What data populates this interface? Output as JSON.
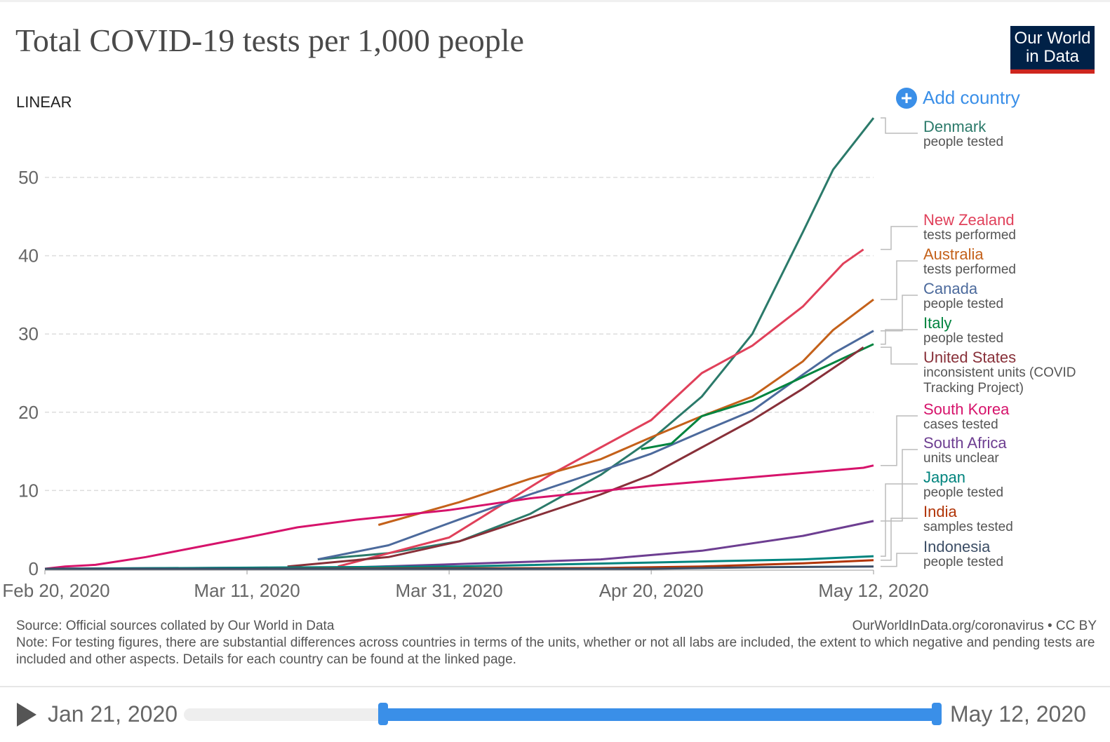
{
  "header": {
    "title": "Total COVID-19 tests per 1,000 people",
    "logo": "Our World in Data",
    "scale_toggle": "LINEAR",
    "add_country": "Add country"
  },
  "chart_data": {
    "type": "line",
    "title": "Total COVID-19 tests per 1,000 people",
    "xlim": [
      "2020-02-20",
      "2020-05-12"
    ],
    "ylim": [
      0,
      58
    ],
    "y_ticks": [
      0,
      10,
      20,
      30,
      40,
      50
    ],
    "x_ticks": [
      "Feb 20, 2020",
      "Mar 11, 2020",
      "Mar 31, 2020",
      "Apr 20, 2020",
      "May 12, 2020"
    ],
    "x_tick_dates": [
      "2020-02-20",
      "2020-03-11",
      "2020-03-31",
      "2020-04-20",
      "2020-05-12"
    ],
    "grid": true,
    "legend": "right",
    "series": [
      {
        "name": "Denmark",
        "unit": "people tested",
        "color": "#2b7a6a",
        "points": [
          [
            "2020-03-18",
            1.2
          ],
          [
            "2020-03-25",
            2
          ],
          [
            "2020-04-01",
            3.5
          ],
          [
            "2020-04-08",
            7
          ],
          [
            "2020-04-15",
            12
          ],
          [
            "2020-04-20",
            16.5
          ],
          [
            "2020-04-25",
            22
          ],
          [
            "2020-04-30",
            30
          ],
          [
            "2020-05-05",
            43
          ],
          [
            "2020-05-08",
            51
          ],
          [
            "2020-05-12",
            57.6
          ]
        ]
      },
      {
        "name": "New Zealand",
        "unit": "tests performed",
        "color": "#e0405a",
        "points": [
          [
            "2020-03-20",
            0.3
          ],
          [
            "2020-03-31",
            4
          ],
          [
            "2020-04-05",
            8
          ],
          [
            "2020-04-10",
            12
          ],
          [
            "2020-04-15",
            15.5
          ],
          [
            "2020-04-20",
            19
          ],
          [
            "2020-04-25",
            25
          ],
          [
            "2020-04-30",
            28.5
          ],
          [
            "2020-05-05",
            33.5
          ],
          [
            "2020-05-09",
            39
          ],
          [
            "2020-05-11",
            40.8
          ]
        ]
      },
      {
        "name": "Australia",
        "unit": "tests performed",
        "color": "#c4611a",
        "points": [
          [
            "2020-03-24",
            5.6
          ],
          [
            "2020-04-01",
            8.5
          ],
          [
            "2020-04-08",
            11.5
          ],
          [
            "2020-04-15",
            14
          ],
          [
            "2020-04-20",
            16.8
          ],
          [
            "2020-04-25",
            19.5
          ],
          [
            "2020-04-30",
            22
          ],
          [
            "2020-05-05",
            26.5
          ],
          [
            "2020-05-08",
            30.5
          ],
          [
            "2020-05-12",
            34.4
          ]
        ]
      },
      {
        "name": "Canada",
        "unit": "people tested",
        "color": "#4c6a9c",
        "points": [
          [
            "2020-03-18",
            1.2
          ],
          [
            "2020-03-25",
            3
          ],
          [
            "2020-04-01",
            6.3
          ],
          [
            "2020-04-08",
            9.5
          ],
          [
            "2020-04-15",
            12.5
          ],
          [
            "2020-04-20",
            14.7
          ],
          [
            "2020-04-25",
            17.5
          ],
          [
            "2020-04-30",
            20.2
          ],
          [
            "2020-05-05",
            24.8
          ],
          [
            "2020-05-08",
            27.5
          ],
          [
            "2020-05-12",
            30.4
          ]
        ]
      },
      {
        "name": "Italy",
        "unit": "people tested",
        "color": "#00843f",
        "points": [
          [
            "2020-04-19",
            15.3
          ],
          [
            "2020-04-22",
            16
          ],
          [
            "2020-04-25",
            19.5
          ],
          [
            "2020-04-30",
            21.5
          ],
          [
            "2020-05-05",
            24.5
          ],
          [
            "2020-05-12",
            28.7
          ]
        ]
      },
      {
        "name": "United States",
        "unit": "inconsistent units (COVID Tracking Project)",
        "color": "#883039",
        "points": [
          [
            "2020-03-15",
            0.3
          ],
          [
            "2020-03-25",
            1.5
          ],
          [
            "2020-04-01",
            3.5
          ],
          [
            "2020-04-08",
            6.5
          ],
          [
            "2020-04-15",
            9.5
          ],
          [
            "2020-04-20",
            12
          ],
          [
            "2020-04-25",
            15.5
          ],
          [
            "2020-04-30",
            19
          ],
          [
            "2020-05-05",
            23
          ],
          [
            "2020-05-09",
            26.5
          ],
          [
            "2020-05-11",
            28.3
          ]
        ]
      },
      {
        "name": "South Korea",
        "unit": "cases tested",
        "color": "#d6136b",
        "points": [
          [
            "2020-02-20",
            0
          ],
          [
            "2020-02-22",
            0.3
          ],
          [
            "2020-02-25",
            0.5
          ],
          [
            "2020-03-01",
            1.5
          ],
          [
            "2020-03-05",
            2.5
          ],
          [
            "2020-03-11",
            4
          ],
          [
            "2020-03-16",
            5.3
          ],
          [
            "2020-03-22",
            6.3
          ],
          [
            "2020-03-31",
            7.5
          ],
          [
            "2020-04-08",
            9
          ],
          [
            "2020-04-20",
            10.6
          ],
          [
            "2020-05-01",
            11.8
          ],
          [
            "2020-05-11",
            12.9
          ],
          [
            "2020-05-12",
            13.2
          ]
        ]
      },
      {
        "name": "South Africa",
        "unit": "units unclear",
        "color": "#6d3e91",
        "points": [
          [
            "2020-02-20",
            0
          ],
          [
            "2020-03-22",
            0.2
          ],
          [
            "2020-04-01",
            0.6
          ],
          [
            "2020-04-15",
            1.2
          ],
          [
            "2020-04-25",
            2.3
          ],
          [
            "2020-05-05",
            4.2
          ],
          [
            "2020-05-12",
            6.1
          ]
        ]
      },
      {
        "name": "Japan",
        "unit": "people tested",
        "color": "#00847e",
        "points": [
          [
            "2020-02-20",
            0
          ],
          [
            "2020-04-01",
            0.3
          ],
          [
            "2020-04-20",
            0.8
          ],
          [
            "2020-05-05",
            1.2
          ],
          [
            "2020-05-12",
            1.6
          ]
        ]
      },
      {
        "name": "India",
        "unit": "samples tested",
        "color": "#b13507",
        "points": [
          [
            "2020-03-10",
            0
          ],
          [
            "2020-04-15",
            0.1
          ],
          [
            "2020-04-25",
            0.3
          ],
          [
            "2020-05-05",
            0.7
          ],
          [
            "2020-05-12",
            1.1
          ]
        ]
      },
      {
        "name": "Indonesia",
        "unit": "people tested",
        "color": "#3c4e66",
        "points": [
          [
            "2020-02-20",
            0
          ],
          [
            "2020-04-20",
            0
          ],
          [
            "2020-05-01",
            0.2
          ],
          [
            "2020-05-12",
            0.3
          ]
        ]
      }
    ]
  },
  "footer": {
    "source": "Source: Official sources collated by Our World in Data",
    "url": "OurWorldInData.org/coronavirus • CC BY",
    "note": "Note: For testing figures, there are substantial differences across countries in terms of the units, whether or not all labs are included, the extent to which negative and pending tests are included and other aspects. Details for each country can be found at the linked page."
  },
  "timeline": {
    "start": "Jan 21, 2020",
    "end": "May 12, 2020"
  }
}
